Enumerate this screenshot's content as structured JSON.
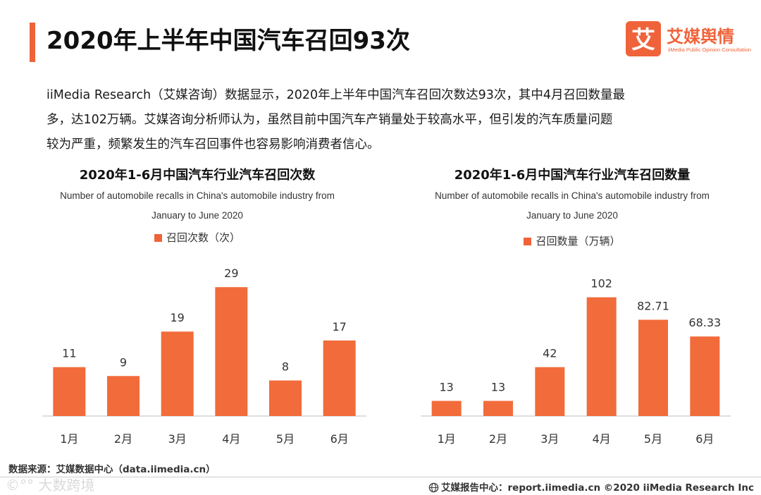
{
  "header": {
    "title": "2020年上半年中国汽车召回93次",
    "logo_char": "艾",
    "logo_name": "艾媒舆情",
    "logo_sub": "iiMedia Public Opinion Consultation"
  },
  "intro": {
    "line1": "iiMedia Research（艾媒咨询）数据显示，2020年上半年中国汽车召回次数达93次，其中4月召回数量最",
    "line2": "多，达102万辆。艾媒咨询分析师认为，虽然目前中国汽车产销量处于较高水平，但引发的汽车质量问题",
    "line3": "较为严重，频繁发生的汽车召回事件也容易影响消费者信心。"
  },
  "colors": {
    "accent": "#f0633a",
    "bar": "#f26b3a",
    "axis": "#bfbfbf"
  },
  "chart_data": [
    {
      "type": "bar",
      "title": "2020年1-6月中国汽车行业汽车召回次数",
      "subtitle_line1": "Number of automobile recalls in China's automobile industry from",
      "subtitle_line2": "January to June 2020",
      "legend": "召回次数（次）",
      "categories": [
        "1月",
        "2月",
        "3月",
        "4月",
        "5月",
        "6月"
      ],
      "values": [
        11,
        9,
        19,
        29,
        8,
        17
      ],
      "labels": [
        "11",
        "9",
        "19",
        "29",
        "8",
        "17"
      ],
      "ylim": [
        0,
        33
      ]
    },
    {
      "type": "bar",
      "title": "2020年1-6月中国汽车行业汽车召回数量",
      "subtitle_line1": "Number of automobile recalls in China's automobile industry from",
      "subtitle_line2": "January to June 2020",
      "legend": "召回数量（万辆）",
      "categories": [
        "1月",
        "2月",
        "3月",
        "4月",
        "5月",
        "6月"
      ],
      "values": [
        13,
        13,
        42,
        102,
        82.71,
        68.33
      ],
      "labels": [
        "13",
        "13",
        "42",
        "102",
        "82.71",
        "68.33"
      ],
      "ylim": [
        0,
        126
      ]
    }
  ],
  "footer": {
    "source": "数据来源：艾媒数据中心（data.iimedia.cn）",
    "report": "艾媒报告中心：report.iimedia.cn ©2020 iiMedia Research Inc",
    "watermark": "©°° 大数跨境"
  }
}
